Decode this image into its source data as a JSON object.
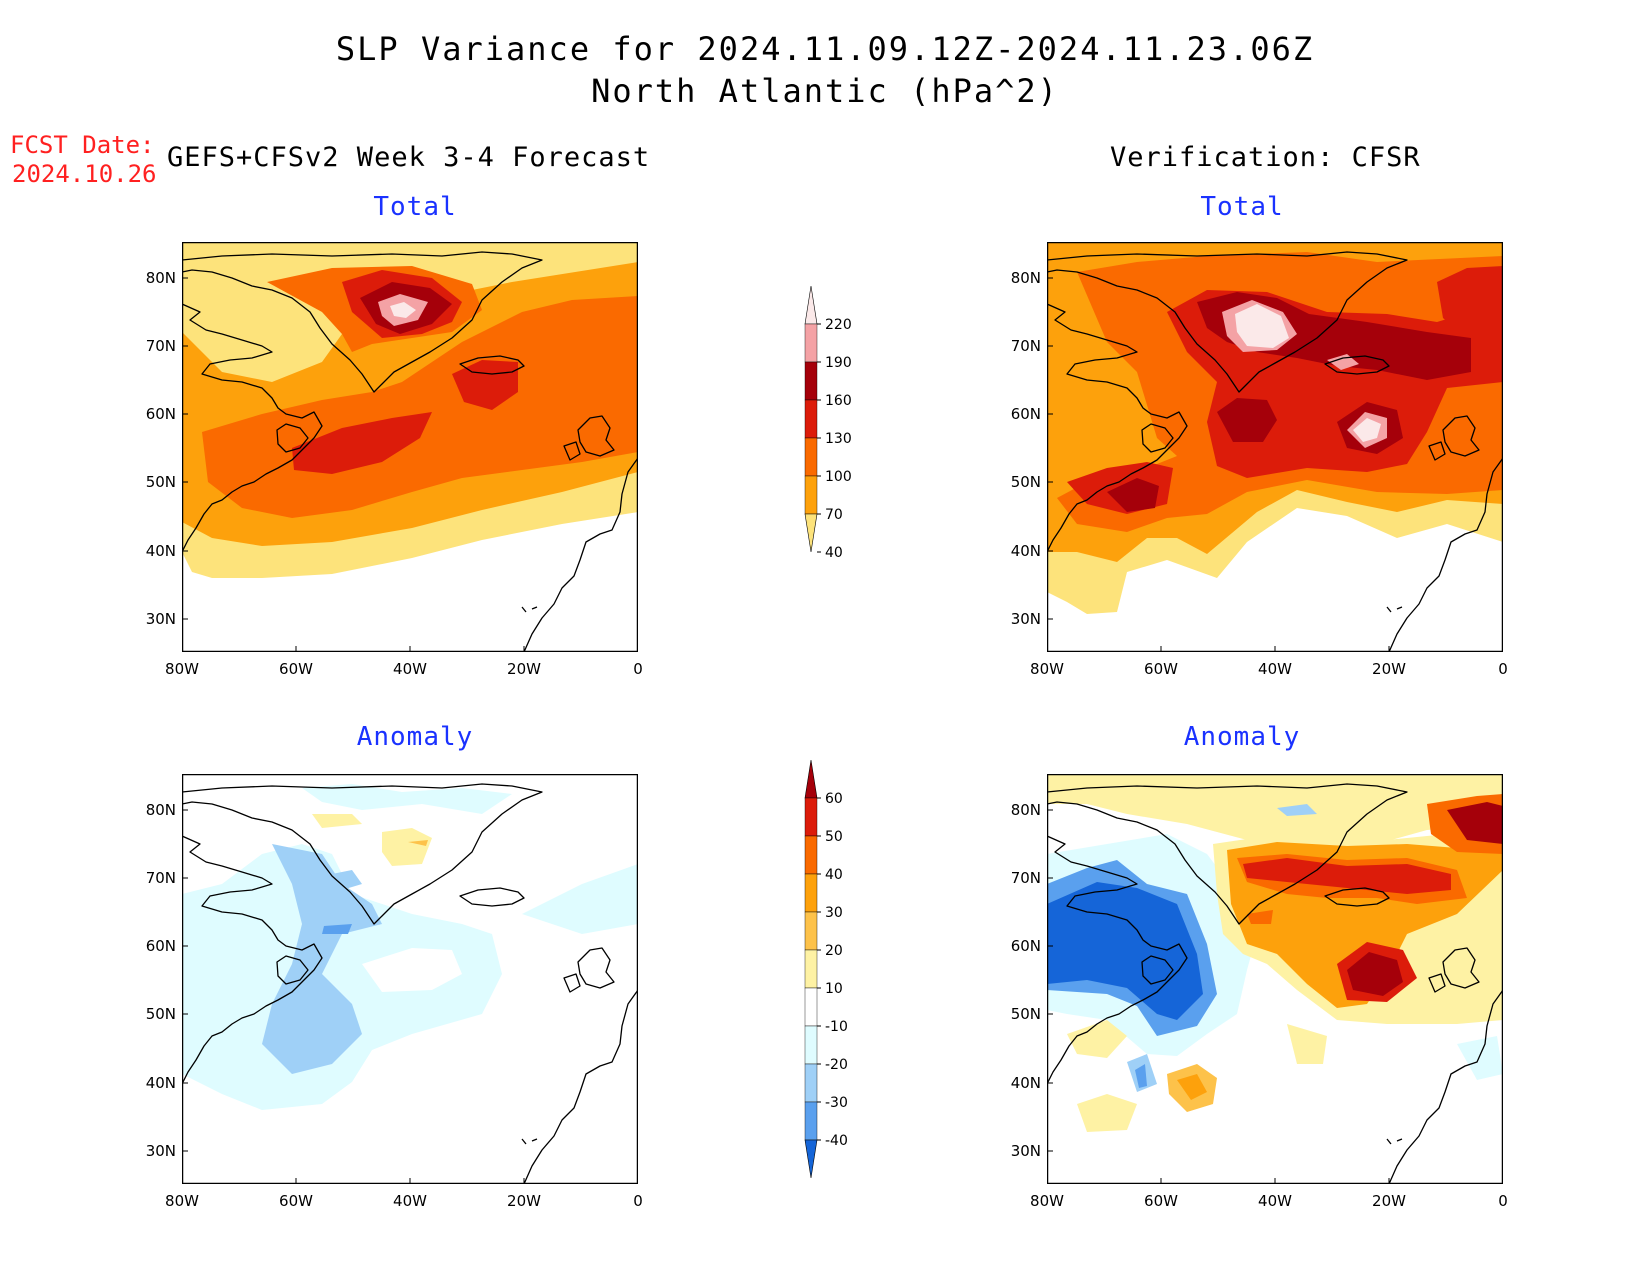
{
  "title": {
    "line1": "SLP Variance for 2024.11.09.12Z-2024.11.23.06Z",
    "line2": "North Atlantic (hPa^2)"
  },
  "forecast_date": {
    "label": "FCST Date:",
    "value": "2024.10.26"
  },
  "headers": {
    "left": "GEFS+CFSv2 Week 3-4 Forecast",
    "right": "Verification: CFSR"
  },
  "panels": {
    "top_left": {
      "subtitle": "Total"
    },
    "top_right": {
      "subtitle": "Total"
    },
    "bottom_left": {
      "subtitle": "Anomaly"
    },
    "bottom_right": {
      "subtitle": "Anomaly"
    }
  },
  "axes": {
    "lon_ticks": [
      "80W",
      "60W",
      "40W",
      "20W",
      "0"
    ],
    "lat_ticks": [
      "80N",
      "70N",
      "60N",
      "50N",
      "40N",
      "30N"
    ]
  },
  "colorbars": {
    "total": {
      "levels": [
        "220",
        "190",
        "160",
        "130",
        "100",
        "70",
        "40"
      ],
      "colors": [
        "#fbe9e9",
        "#f4a2a5",
        "#a5000a",
        "#dc1c0a",
        "#fa6a00",
        "#fda10c",
        "#fde37b"
      ]
    },
    "anomaly": {
      "levels": [
        "60",
        "50",
        "40",
        "30",
        "20",
        "10",
        "-10",
        "-20",
        "-30",
        "-40"
      ],
      "colors": [
        "#a5000a",
        "#dc1c0a",
        "#fa6a00",
        "#fda10c",
        "#fdc24a",
        "#fef2a4",
        "#ffffff",
        "#dffcff",
        "#9fd0f7",
        "#5aa0ee",
        "#1565d8"
      ]
    }
  }
}
